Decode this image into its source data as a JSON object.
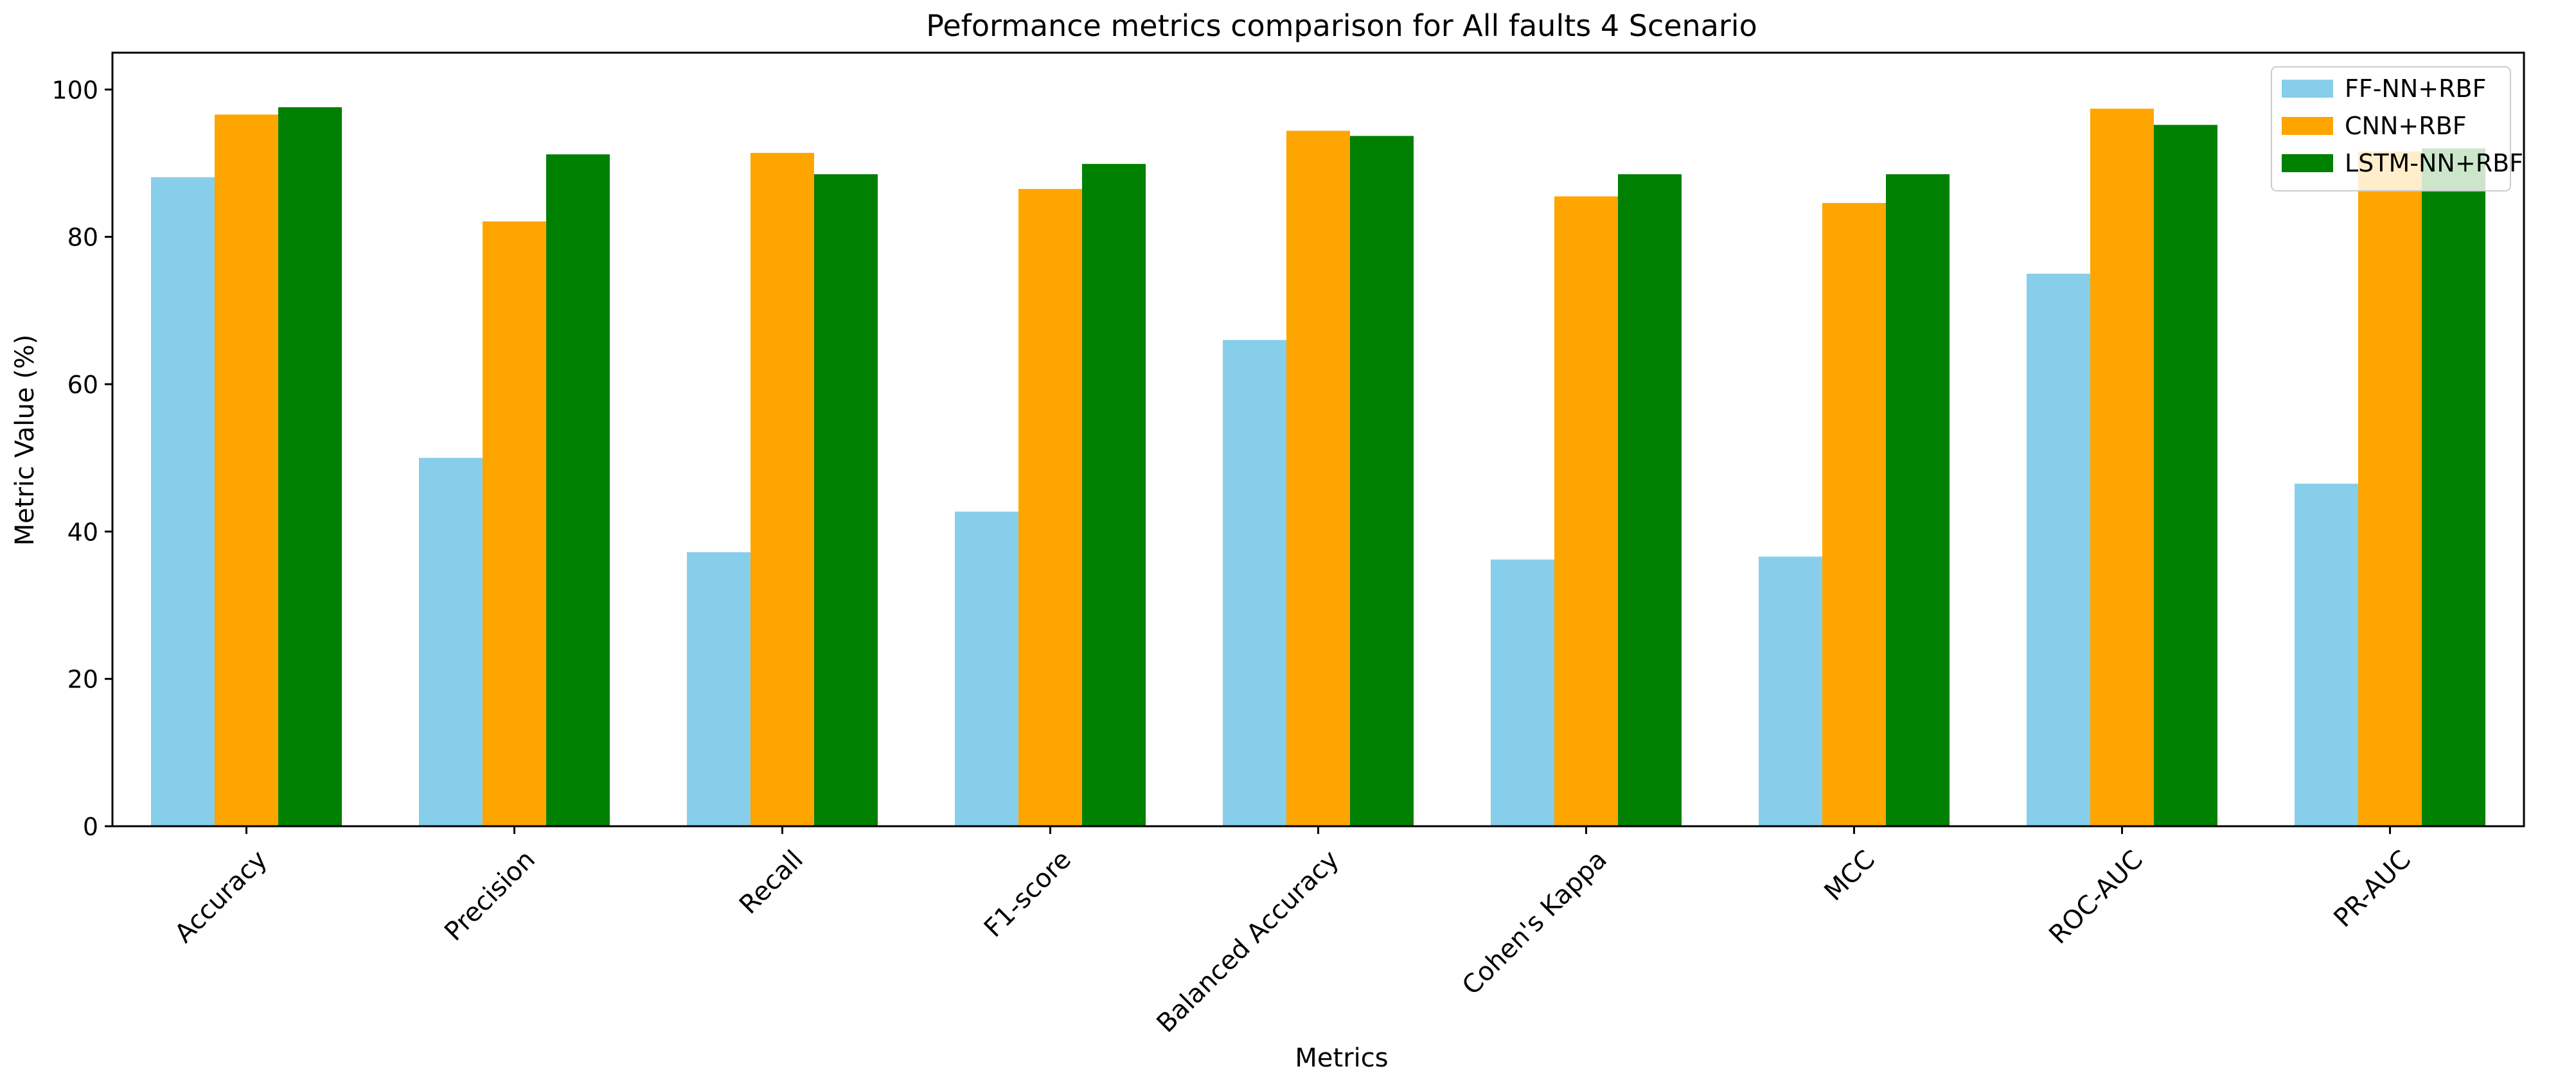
{
  "chart_data": {
    "type": "bar",
    "title": "Peformance metrics comparison for All faults 4 Scenario",
    "xlabel": "Metrics",
    "ylabel": "Metric Value (%)",
    "ylim": [
      0,
      105
    ],
    "yticks": [
      0,
      20,
      40,
      60,
      80,
      100
    ],
    "grid": false,
    "legend_position": "top-right",
    "categories": [
      "Accuracy",
      "Precision",
      "Recall",
      "F1-score",
      "Balanced Accuracy",
      "Cohen's Kappa",
      "MCC",
      "ROC-AUC",
      "PR-AUC"
    ],
    "series": [
      {
        "name": "FF-NN+RBF",
        "color": "#87ceeb",
        "values": [
          88.1,
          50.0,
          37.2,
          42.7,
          66.0,
          36.2,
          36.6,
          75.0,
          46.5
        ]
      },
      {
        "name": "CNN+RBF",
        "color": "#ffa500",
        "values": [
          96.6,
          82.1,
          91.4,
          86.5,
          94.4,
          85.5,
          84.6,
          97.4,
          91.6
        ]
      },
      {
        "name": "LSTM-NN+RBF",
        "color": "#008000",
        "values": [
          97.6,
          91.2,
          88.5,
          89.9,
          93.7,
          88.5,
          88.5,
          95.2,
          92.0
        ]
      }
    ]
  }
}
